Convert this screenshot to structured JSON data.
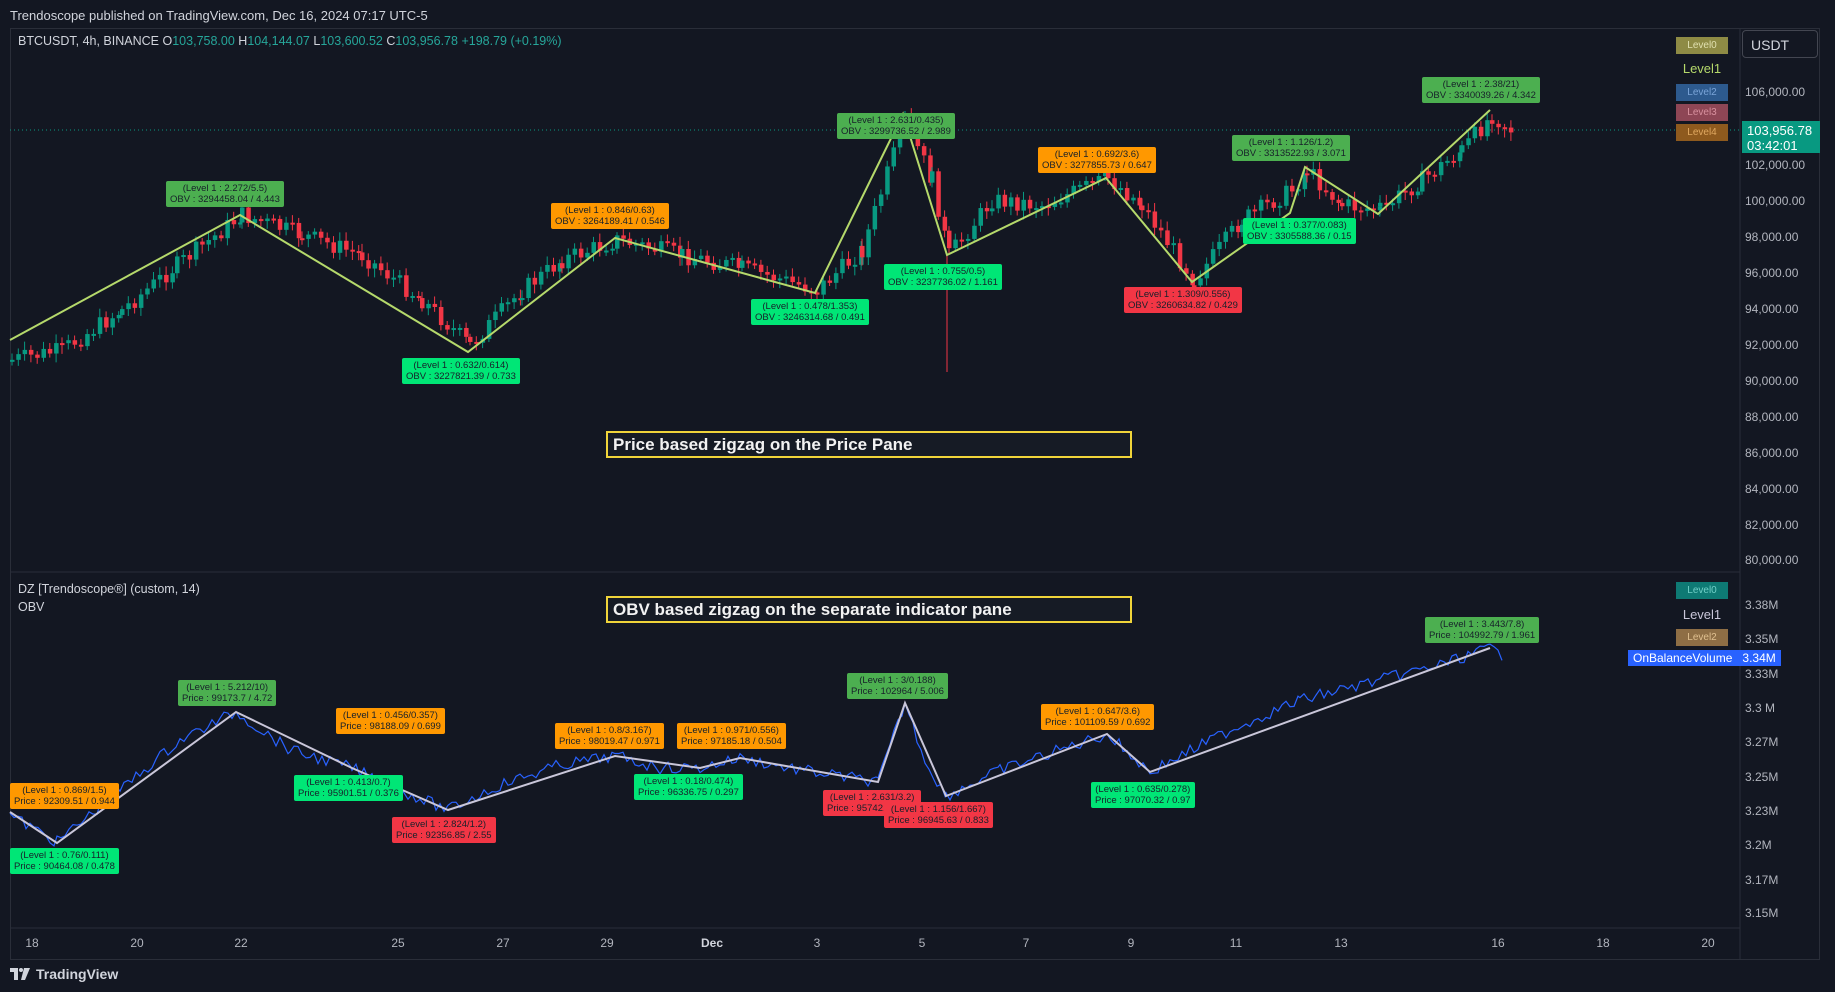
{
  "header": {
    "published": "Trendoscope published on TradingView.com, Dec 16, 2024 07:17 UTC-5"
  },
  "symbol": {
    "name": "BTCUSDT, 4h, BINANCE",
    "o_label": "O",
    "o": "103,758.00",
    "h_label": "H",
    "h": "104,144.07",
    "l_label": "L",
    "l": "103,600.52",
    "c_label": "C",
    "c": "103,956.78",
    "change": "+198.79 (+0.19%)"
  },
  "currency_button": "USDT",
  "last_price": {
    "value": "103,956.78",
    "countdown": "03:42:01"
  },
  "price_axis": [
    "106,000.00",
    "102,000.00",
    "100,000.00",
    "98,000.00",
    "96,000.00",
    "94,000.00",
    "92,000.00",
    "90,000.00",
    "88,000.00",
    "86,000.00",
    "84,000.00",
    "82,000.00",
    "80,000.00"
  ],
  "obv_axis": [
    "3.38M",
    "3.35M",
    "3.33M",
    "3.3 M",
    "3.27M",
    "3.25M",
    "3.23M",
    "3.2M",
    "3.17M",
    "3.15M"
  ],
  "obv_tag": {
    "name": "OnBalanceVolume",
    "value": "3.34M"
  },
  "time_axis": [
    "18",
    "20",
    "22",
    "25",
    "27",
    "29",
    "Dec",
    "3",
    "5",
    "7",
    "9",
    "11",
    "13",
    "16",
    "18",
    "20"
  ],
  "indicator": {
    "title": "DZ [Trendoscope®] (custom, 14)",
    "sub": "OBV"
  },
  "legend_price": [
    "Level0",
    "Level1",
    "Level2",
    "Level3",
    "Level4"
  ],
  "legend_obv": [
    "Level0",
    "Level1",
    "Level2"
  ],
  "colors": {
    "bg": "#131722",
    "up": "#089981",
    "down": "#f23645",
    "zigzag": "#b5d96b",
    "obv_line": "#2962ff",
    "caption_border": "#f0d43a"
  },
  "captions": {
    "price": "Price based zigzag on the Price Pane",
    "obv": "OBV based zigzag on the separate indicator pane"
  },
  "price_labels": [
    {
      "l1": "(Level 1 : 2.272/5.5)",
      "l2": "OBV : 3294458.04 / 4.443"
    },
    {
      "l1": "(Level 1 : 0.632/0.614)",
      "l2": "OBV : 3227821.39 / 0.733"
    },
    {
      "l1": "(Level 1 : 0.846/0.63)",
      "l2": "OBV : 3264189.41 / 0.546"
    },
    {
      "l1": "(Level 1 : 0.478/1.353)",
      "l2": "OBV : 3246314.68 / 0.491"
    },
    {
      "l1": "(Level 1 : 2.631/0.435)",
      "l2": "OBV : 3299736.52 / 2.989"
    },
    {
      "l1": "(Level 1 : 0.755/0.5)",
      "l2": "OBV : 3237736.02 / 1.161"
    },
    {
      "l1": "(Level 1 : 0.692/3.6)",
      "l2": "OBV : 3277855.73 / 0.647"
    },
    {
      "l1": "(Level 1 : 1.309/0.556)",
      "l2": "OBV : 3260634.82 / 0.429"
    },
    {
      "l1": "(Level 1 : 1.126/1.2)",
      "l2": "OBV : 3313522.93 / 3.071"
    },
    {
      "l1": "(Level 1 : 0.377/0.083)",
      "l2": "OBV : 3305588.36 / 0.15"
    },
    {
      "l1": "(Level 1 : 2.38/21)",
      "l2": "OBV : 3340039.26 / 4.342"
    }
  ],
  "obv_labels": [
    {
      "l1": "(Level 1 : 0.869/1.5)",
      "l2": "Price : 92309.51 / 0.944"
    },
    {
      "l1": "(Level 1 : 0.76/0.111)",
      "l2": "Price : 90464.08 / 0.478"
    },
    {
      "l1": "(Level 1 : 5.212/10)",
      "l2": "Price : 99173.7 / 4.72"
    },
    {
      "l1": "(Level 1 : 0.413/0.7)",
      "l2": "Price : 95901.51 / 0.376"
    },
    {
      "l1": "(Level 1 : 0.456/0.357)",
      "l2": "Price : 98188.09 / 0.699"
    },
    {
      "l1": "(Level 1 : 2.824/1.2)",
      "l2": "Price : 92356.85 / 2.55"
    },
    {
      "l1": "(Level 1 : 0.8/3.167)",
      "l2": "Price : 98019.47 / 0.971"
    },
    {
      "l1": "(Level 1 : 0.18/0.474)",
      "l2": "Price : 96336.75 / 0.297"
    },
    {
      "l1": "(Level 1 : 0.971/0.556)",
      "l2": "Price : 97185.18 / 0.504"
    },
    {
      "l1": "(Level 1 : 2.631/3.2)",
      "l2": "Price : 95742.81 / 1.7"
    },
    {
      "l1": "(Level 1 : 3/0.188)",
      "l2": "Price : 102964 / 5.006"
    },
    {
      "l1": "(Level 1 : 1.156/1.667)",
      "l2": "Price : 96945.63 / 0.833"
    },
    {
      "l1": "(Level 1 : 0.647/3.6)",
      "l2": "Price : 101109.59 / 0.692"
    },
    {
      "l1": "(Level 1 : 0.635/0.278)",
      "l2": "Price : 97070.32 / 0.97"
    },
    {
      "l1": "(Level 1 : 3.443/7.8)",
      "l2": "Price : 104992.79 / 1.961"
    }
  ],
  "brand": "TradingView"
}
